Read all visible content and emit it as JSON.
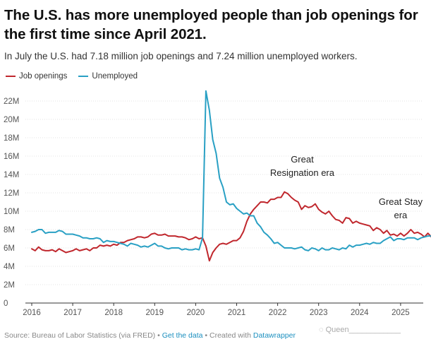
{
  "header": {
    "title": "The U.S. has more unemployed people than job openings for the first time since April 2021.",
    "subtitle": "In July the U.S. had 7.18 million job openings and 7.24 million unemployed workers."
  },
  "legend": {
    "job_openings": "Job openings",
    "unemployed": "Unemployed"
  },
  "footer": {
    "source": "Source: Bureau of Labor Statistics (via FRED)",
    "sep1": " • ",
    "get_data": "Get the data",
    "sep2": " • Created with ",
    "datawrapper": "Datawrapper"
  },
  "watermark": "Queen",
  "chart_data": {
    "type": "line",
    "x_start": "2016-01",
    "x_end": "2025-07",
    "ylim": [
      0,
      22
    ],
    "y_ticks": [
      "0",
      "2M",
      "4M",
      "6M",
      "8M",
      "10M",
      "12M",
      "14M",
      "16M",
      "18M",
      "20M",
      "22M"
    ],
    "y_tick_values": [
      0,
      2,
      4,
      6,
      8,
      10,
      12,
      14,
      16,
      18,
      20,
      22
    ],
    "x_ticks": [
      "2016",
      "2017",
      "2018",
      "2019",
      "2020",
      "2021",
      "2022",
      "2023",
      "2024",
      "2025"
    ],
    "grid": true,
    "legend_position": "top-left",
    "annotations": [
      {
        "text": [
          "Great",
          "Resignation era"
        ],
        "x": 2022.6,
        "y": 15.3
      },
      {
        "text": [
          "Great Stay",
          "era"
        ],
        "x": 2025.0,
        "y": 10.7
      }
    ],
    "series": [
      {
        "name": "Job openings",
        "color": "#c0272d",
        "values": [
          5.9,
          5.7,
          6.1,
          5.8,
          5.7,
          5.7,
          5.8,
          5.6,
          5.9,
          5.7,
          5.5,
          5.6,
          5.7,
          5.9,
          5.7,
          5.8,
          5.9,
          5.7,
          6.0,
          6.0,
          6.3,
          6.2,
          6.3,
          6.2,
          6.4,
          6.3,
          6.6,
          6.6,
          6.8,
          6.9,
          7.0,
          7.2,
          7.2,
          7.1,
          7.2,
          7.5,
          7.6,
          7.4,
          7.4,
          7.5,
          7.3,
          7.3,
          7.3,
          7.2,
          7.2,
          7.1,
          6.9,
          7.0,
          7.2,
          7.0,
          7.1,
          6.2,
          4.6,
          5.5,
          6.0,
          6.4,
          6.5,
          6.4,
          6.6,
          6.8,
          6.8,
          7.1,
          7.8,
          8.9,
          9.7,
          10.2,
          10.6,
          11.0,
          11.0,
          10.9,
          11.3,
          11.3,
          11.5,
          11.5,
          12.1,
          11.9,
          11.5,
          11.2,
          11.0,
          10.2,
          10.6,
          10.4,
          10.5,
          10.8,
          10.2,
          9.9,
          9.7,
          10.0,
          9.5,
          9.1,
          9.0,
          8.7,
          9.3,
          9.2,
          8.7,
          8.9,
          8.7,
          8.6,
          8.5,
          8.4,
          7.9,
          8.2,
          8.0,
          7.6,
          7.9,
          7.4,
          7.5,
          7.3,
          7.6,
          7.3,
          7.6,
          8.0,
          7.6,
          7.7,
          7.5,
          7.2,
          7.6,
          7.2,
          7.2
        ]
      },
      {
        "name": "Unemployed",
        "color": "#29a0c4",
        "values": [
          7.7,
          7.8,
          8.0,
          8.0,
          7.6,
          7.7,
          7.7,
          7.7,
          7.9,
          7.8,
          7.5,
          7.5,
          7.5,
          7.4,
          7.3,
          7.1,
          7.1,
          7.0,
          7.0,
          7.1,
          7.0,
          6.6,
          6.8,
          6.7,
          6.7,
          6.6,
          6.5,
          6.4,
          6.2,
          6.5,
          6.4,
          6.3,
          6.1,
          6.2,
          6.1,
          6.3,
          6.5,
          6.2,
          6.2,
          6.0,
          5.9,
          6.0,
          6.0,
          6.0,
          5.8,
          5.9,
          5.8,
          5.8,
          5.9,
          5.8,
          7.1,
          23.1,
          21.0,
          17.8,
          16.3,
          13.6,
          12.6,
          11.0,
          10.7,
          10.8,
          10.3,
          10.0,
          9.7,
          9.8,
          9.5,
          9.5,
          8.7,
          8.3,
          7.7,
          7.4,
          7.0,
          6.5,
          6.6,
          6.3,
          6.0,
          6.0,
          6.0,
          5.9,
          6.0,
          6.1,
          5.8,
          5.7,
          6.0,
          5.9,
          5.7,
          6.0,
          5.8,
          5.8,
          6.0,
          5.9,
          5.8,
          6.0,
          5.9,
          6.3,
          6.1,
          6.3,
          6.3,
          6.4,
          6.5,
          6.4,
          6.6,
          6.5,
          6.5,
          6.8,
          7.0,
          7.2,
          6.8,
          7.0,
          7.0,
          6.9,
          7.1,
          7.1,
          7.1,
          6.9,
          7.1,
          7.2,
          7.3,
          7.3,
          7.2
        ]
      }
    ]
  }
}
